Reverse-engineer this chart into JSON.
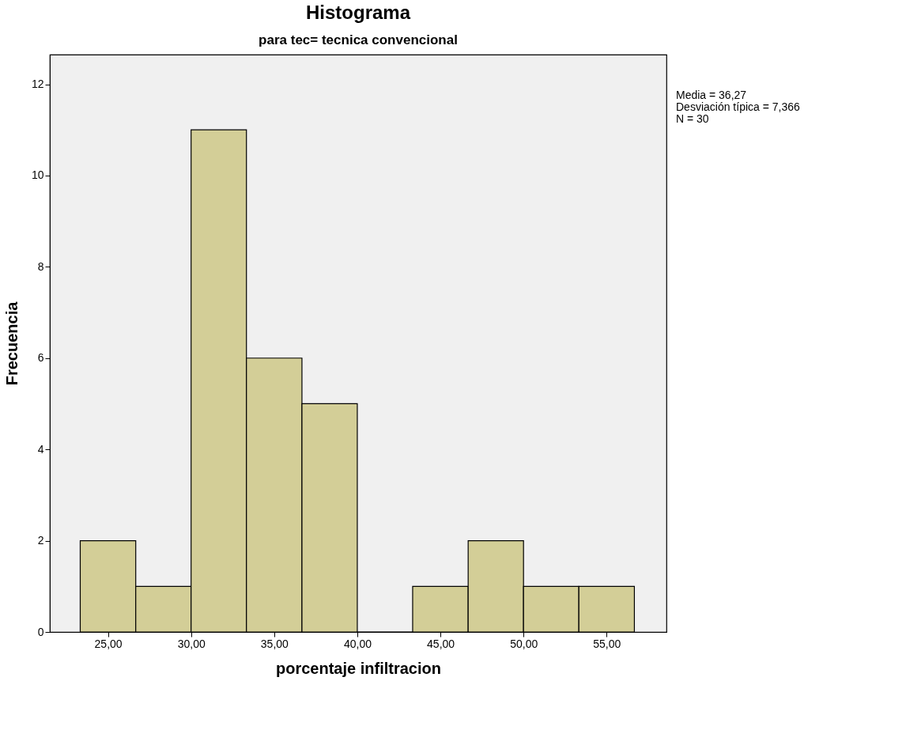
{
  "chart_data": {
    "type": "histogram",
    "title": "Histograma",
    "subtitle": "para tec= tecnica convencional",
    "xlabel": "porcentaje infiltracion",
    "ylabel": "Frecuencia",
    "bins": [
      23.33,
      26.67,
      30,
      33.33,
      36.67,
      40,
      43.33,
      46.67,
      50,
      53.33,
      56.67
    ],
    "values": [
      2,
      1,
      11,
      6,
      5,
      0,
      1,
      2,
      1,
      1
    ],
    "color": "#d3ce97",
    "xlim": [
      21.5,
      58.6
    ],
    "ylim": [
      0,
      12.65
    ],
    "xticks": [
      {
        "value": 25,
        "label": "25,00"
      },
      {
        "value": 30,
        "label": "30,00"
      },
      {
        "value": 35,
        "label": "35,00"
      },
      {
        "value": 40,
        "label": "40,00"
      },
      {
        "value": 45,
        "label": "45,00"
      },
      {
        "value": 50,
        "label": "50,00"
      },
      {
        "value": 55,
        "label": "55,00"
      }
    ],
    "yticks": [
      0,
      2,
      4,
      6,
      8,
      10,
      12
    ],
    "annotations": [
      "Media = 36,27",
      "Desviación típica = 7,366",
      "N = 30"
    ],
    "grid": false
  }
}
